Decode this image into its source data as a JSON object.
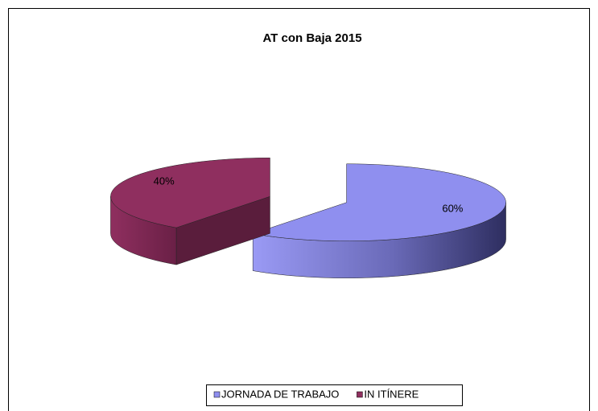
{
  "chart_data": {
    "type": "pie",
    "title": "AT con Baja 2015",
    "categories": [
      "JORNADA DE TRABAJO",
      "IN ITÍNERE"
    ],
    "values": [
      60,
      40
    ],
    "value_labels": [
      "60%",
      "40%"
    ],
    "colors": [
      "#8f8fef",
      "#8f2f5f"
    ],
    "legend": "bottom"
  }
}
